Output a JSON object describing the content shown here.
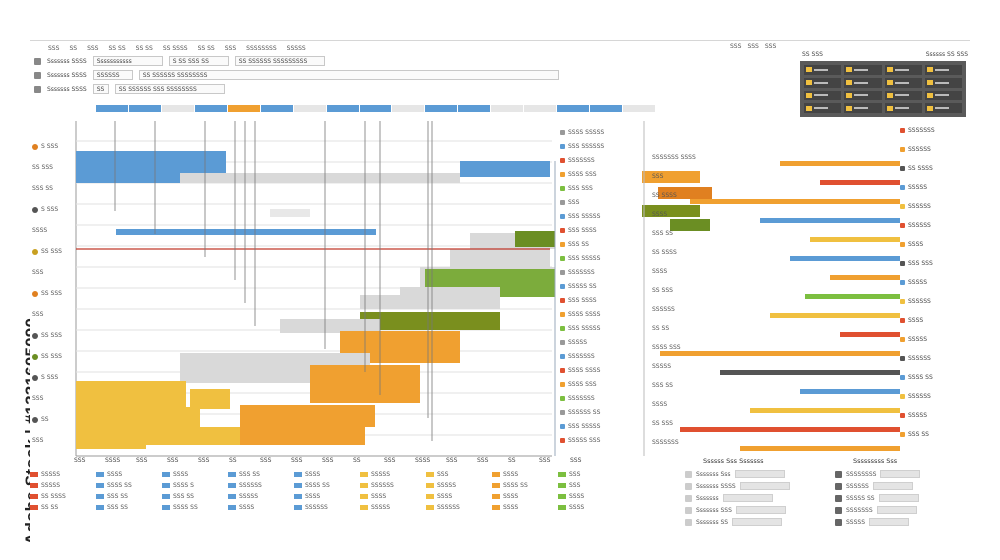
{
  "watermark": "Adobe Stock | #1331605090",
  "menubar": [
    "SSS",
    "SS",
    "SSS",
    "SS SS",
    "SS SS",
    "SS SSSS",
    "SS SS",
    "SSS",
    "SSSSSSSS",
    "SSSSS"
  ],
  "topright_menu": [
    "SSS",
    "SSS",
    "SSS"
  ],
  "toolbar_row1": {
    "label": "Sssssss SSSS",
    "fields": [
      "Sssssssssss",
      "S SS SSS SS",
      "SS SSSSSS SSSSSSSSS"
    ]
  },
  "toolbar_row2": {
    "label": "Sssssss SSSS",
    "fields": [
      "SSSSSS",
      "SS SSSSSS SSSSSSSS"
    ]
  },
  "toolbar_row3": {
    "label": "Sssssss SSSS",
    "fields": [
      "SS",
      "SS SSSSSS SSS SSSSSSSS"
    ]
  },
  "thumbpanel": {
    "left": "SS SSS",
    "right": "Ssssss SS SSS"
  },
  "timeline_colors": [
    "#5b9bd5",
    "#5b9bd5",
    "#e6e6e6",
    "#5b9bd5",
    "#f0a030",
    "#5b9bd5",
    "#e6e6e6",
    "#5b9bd5",
    "#5b9bd5",
    "#e6e6e6",
    "#5b9bd5",
    "#5b9bd5",
    "#e6e6e6",
    "#e6e6e6",
    "#5b9bd5",
    "#5b9bd5",
    "#e6e6e6"
  ],
  "y_labels": [
    {
      "text": "S SSS",
      "dot": "#e08020"
    },
    {
      "text": "SS SSS",
      "dot": ""
    },
    {
      "text": "SSS SS",
      "dot": ""
    },
    {
      "text": "S SSS",
      "dot": "#555555"
    },
    {
      "text": "SSSS",
      "dot": ""
    },
    {
      "text": "SS SSS",
      "dot": "#c8a020"
    },
    {
      "text": "SSS",
      "dot": ""
    },
    {
      "text": "SS SSS",
      "dot": "#e08020"
    },
    {
      "text": "SSS",
      "dot": ""
    },
    {
      "text": "SS SSS",
      "dot": "#555555"
    },
    {
      "text": "SS SSS",
      "dot": "#6b8e23"
    },
    {
      "text": "S SSS",
      "dot": "#555555"
    },
    {
      "text": "SSS",
      "dot": ""
    },
    {
      "text": "SS",
      "dot": "#555555"
    },
    {
      "text": "SSS",
      "dot": ""
    }
  ],
  "x_labels": [
    "SSS",
    "SSSS",
    "SSS",
    "SSS",
    "SSS",
    "SS",
    "SSS",
    "SSS",
    "SSS",
    "SS",
    "SSS",
    "SSSS",
    "SSS",
    "SSS",
    "SS",
    "SSS",
    "SSS"
  ],
  "bottom_legend": [
    {
      "rows": [
        "SSSSS",
        "SSSSS",
        "SS SSSS",
        "SS SS"
      ],
      "color": "#e05030"
    },
    {
      "rows": [
        "SSSS",
        "SSSS SS",
        "SSS SS",
        "SSS SS"
      ],
      "color": "#5b9bd5"
    },
    {
      "rows": [
        "SSSS",
        "SSSS S",
        "SSS SS",
        "SSSS SS"
      ],
      "color": "#5b9bd5"
    },
    {
      "rows": [
        "SSS SS",
        "SSSSSS",
        "SSSSS",
        "SSSS"
      ],
      "color": "#5b9bd5"
    },
    {
      "rows": [
        "SSSS",
        "SSSS SS",
        "SSSS",
        "SSSSSS"
      ],
      "color": "#5b9bd5"
    },
    {
      "rows": [
        "SSSSS",
        "SSSSSS",
        "SSSS",
        "SSSSS"
      ],
      "color": "#f0c040"
    },
    {
      "rows": [
        "SSS",
        "SSSSS",
        "SSSS",
        "SSSSSS"
      ],
      "color": "#f0c040"
    },
    {
      "rows": [
        "SSSS",
        "SSSS SS",
        "SSSS",
        "SSSS"
      ],
      "color": "#f0a030"
    },
    {
      "rows": [
        "SSS",
        "SSS",
        "SSSS",
        "SSSS"
      ],
      "color": "#7cbf40"
    }
  ],
  "center_list": [
    "SSSS SSSSS",
    "SSS SSSSSS",
    "SSSSSSS",
    "SSSS SSS",
    "SSS SSS",
    "SSS",
    "SSS SSSSS",
    "SSS SSSS",
    "SSS SS",
    "SSS SSSSS",
    "SSSSSSS",
    "SSSSS SS",
    "SSS SSSS",
    "SSSS SSSS",
    "SSS SSSSS",
    "SSSSS",
    "SSSSSSS",
    "SSSS SSSS",
    "SSSS SSS",
    "SSSSSSS",
    "SSSSSS SS",
    "SSS SSSSS",
    "SSSSS SSS"
  ],
  "right_rows": [
    {
      "color": "#f0a030",
      "w": 120,
      "label": "SSSSSSS SSSS"
    },
    {
      "color": "#e05030",
      "w": 80,
      "label": "SSS"
    },
    {
      "color": "#f0a030",
      "w": 210,
      "label": "SS SSSS"
    },
    {
      "color": "#5b9bd5",
      "w": 140,
      "label": "SSSS"
    },
    {
      "color": "#f0c040",
      "w": 90,
      "label": "SSS SS"
    },
    {
      "color": "#5b9bd5",
      "w": 110,
      "label": "SS SSSS"
    },
    {
      "color": "#f0a030",
      "w": 70,
      "label": "SSSS"
    },
    {
      "color": "#7cbf40",
      "w": 95,
      "label": "SS SSS"
    },
    {
      "color": "#f0c040",
      "w": 130,
      "label": "SSSSSS"
    },
    {
      "color": "#e05030",
      "w": 60,
      "label": "SS SS"
    },
    {
      "color": "#f0a030",
      "w": 240,
      "label": "SSSS SSS"
    },
    {
      "color": "#555555",
      "w": 180,
      "label": "SSSSS"
    },
    {
      "color": "#5b9bd5",
      "w": 100,
      "label": "SSS SS"
    },
    {
      "color": "#f0c040",
      "w": 150,
      "label": "SSSS"
    },
    {
      "color": "#e05030",
      "w": 220,
      "label": "SS SSS"
    },
    {
      "color": "#f0a030",
      "w": 160,
      "label": "SSSSSSS"
    }
  ],
  "right_tags": [
    "SSSSSSS",
    "SSSSSS",
    "SS SSSS",
    "SSSSS",
    "SSSSSS",
    "SSSSSS",
    "SSSS",
    "SSS SSS",
    "SSSSS",
    "SSSSSS",
    "SSSS",
    "SSSSS",
    "SSSSSS",
    "SSSS SS",
    "SSSSSS",
    "SSSSS",
    "SSS SS"
  ],
  "bottom_right": {
    "title": "Ssssss Sss Sssssss",
    "rows": [
      "Sssssss Sss",
      "Sssssss SSSS",
      "Sssssss",
      "Sssssss SSS",
      "Sssssss SS"
    ],
    "right_title": "Sssssssss Sss",
    "right_rows": [
      "SSSSSSSS",
      "SSSSSS",
      "SSSSS SS",
      "SSSSSSS",
      "SSSSS"
    ]
  }
}
